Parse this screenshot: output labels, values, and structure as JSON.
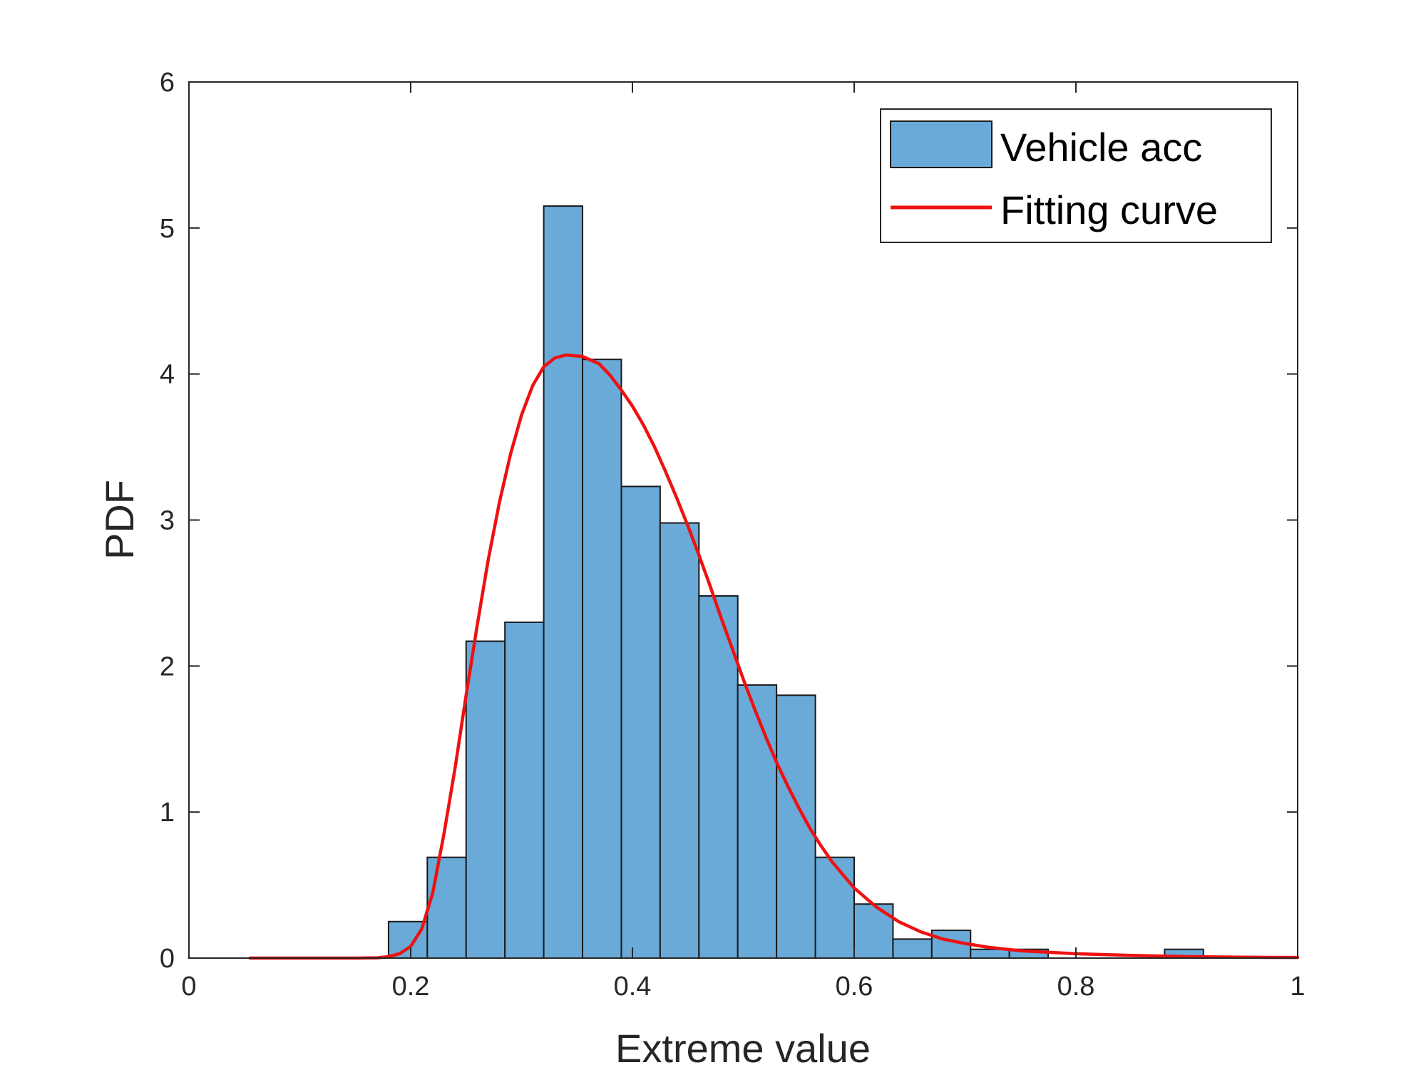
{
  "chart_data": {
    "type": "bar",
    "title": "",
    "xlabel": "Extreme value",
    "ylabel": "PDF",
    "xlim": [
      0,
      1
    ],
    "ylim": [
      0,
      6
    ],
    "xticks": [
      0,
      0.2,
      0.4,
      0.6,
      0.8,
      1
    ],
    "xtick_labels": [
      "0",
      "0.2",
      "0.4",
      "0.6",
      "0.8",
      "1"
    ],
    "yticks": [
      0,
      1,
      2,
      3,
      4,
      5,
      6
    ],
    "ytick_labels": [
      "0",
      "1",
      "2",
      "3",
      "4",
      "5",
      "6"
    ],
    "grid": false,
    "legend_position": "top-right",
    "series": [
      {
        "name": "Vehicle acc",
        "kind": "histogram",
        "color": "#6aaad8",
        "edge_color": "#1a1a1a",
        "bin_start": 0.18,
        "bin_width": 0.035,
        "values": [
          0.25,
          0.69,
          2.17,
          2.3,
          5.15,
          4.1,
          3.23,
          2.98,
          2.48,
          1.87,
          1.8,
          0.69,
          0.37,
          0.13,
          0.19,
          0.06,
          0.06,
          0,
          0,
          0,
          0.06
        ]
      },
      {
        "name": "Fitting curve",
        "kind": "line",
        "color": "#ee1111",
        "x": [
          0.055,
          0.1,
          0.15,
          0.17,
          0.18,
          0.19,
          0.2,
          0.21,
          0.22,
          0.23,
          0.24,
          0.25,
          0.26,
          0.27,
          0.28,
          0.29,
          0.3,
          0.31,
          0.32,
          0.33,
          0.34,
          0.355,
          0.37,
          0.38,
          0.39,
          0.4,
          0.41,
          0.42,
          0.43,
          0.44,
          0.45,
          0.46,
          0.47,
          0.48,
          0.49,
          0.5,
          0.51,
          0.52,
          0.53,
          0.54,
          0.55,
          0.56,
          0.57,
          0.58,
          0.6,
          0.62,
          0.64,
          0.66,
          0.68,
          0.7,
          0.72,
          0.75,
          0.8,
          0.85,
          0.9,
          0.95,
          1.0
        ],
        "y": [
          0.0,
          0.0,
          0.0,
          0.002,
          0.01,
          0.03,
          0.08,
          0.2,
          0.45,
          0.85,
          1.3,
          1.8,
          2.28,
          2.73,
          3.12,
          3.45,
          3.72,
          3.92,
          4.05,
          4.11,
          4.13,
          4.12,
          4.07,
          3.99,
          3.89,
          3.78,
          3.65,
          3.5,
          3.33,
          3.15,
          2.96,
          2.76,
          2.55,
          2.33,
          2.12,
          1.91,
          1.71,
          1.52,
          1.34,
          1.18,
          1.03,
          0.89,
          0.77,
          0.66,
          0.48,
          0.35,
          0.25,
          0.18,
          0.13,
          0.1,
          0.075,
          0.05,
          0.03,
          0.018,
          0.01,
          0.006,
          0.004
        ]
      }
    ]
  }
}
